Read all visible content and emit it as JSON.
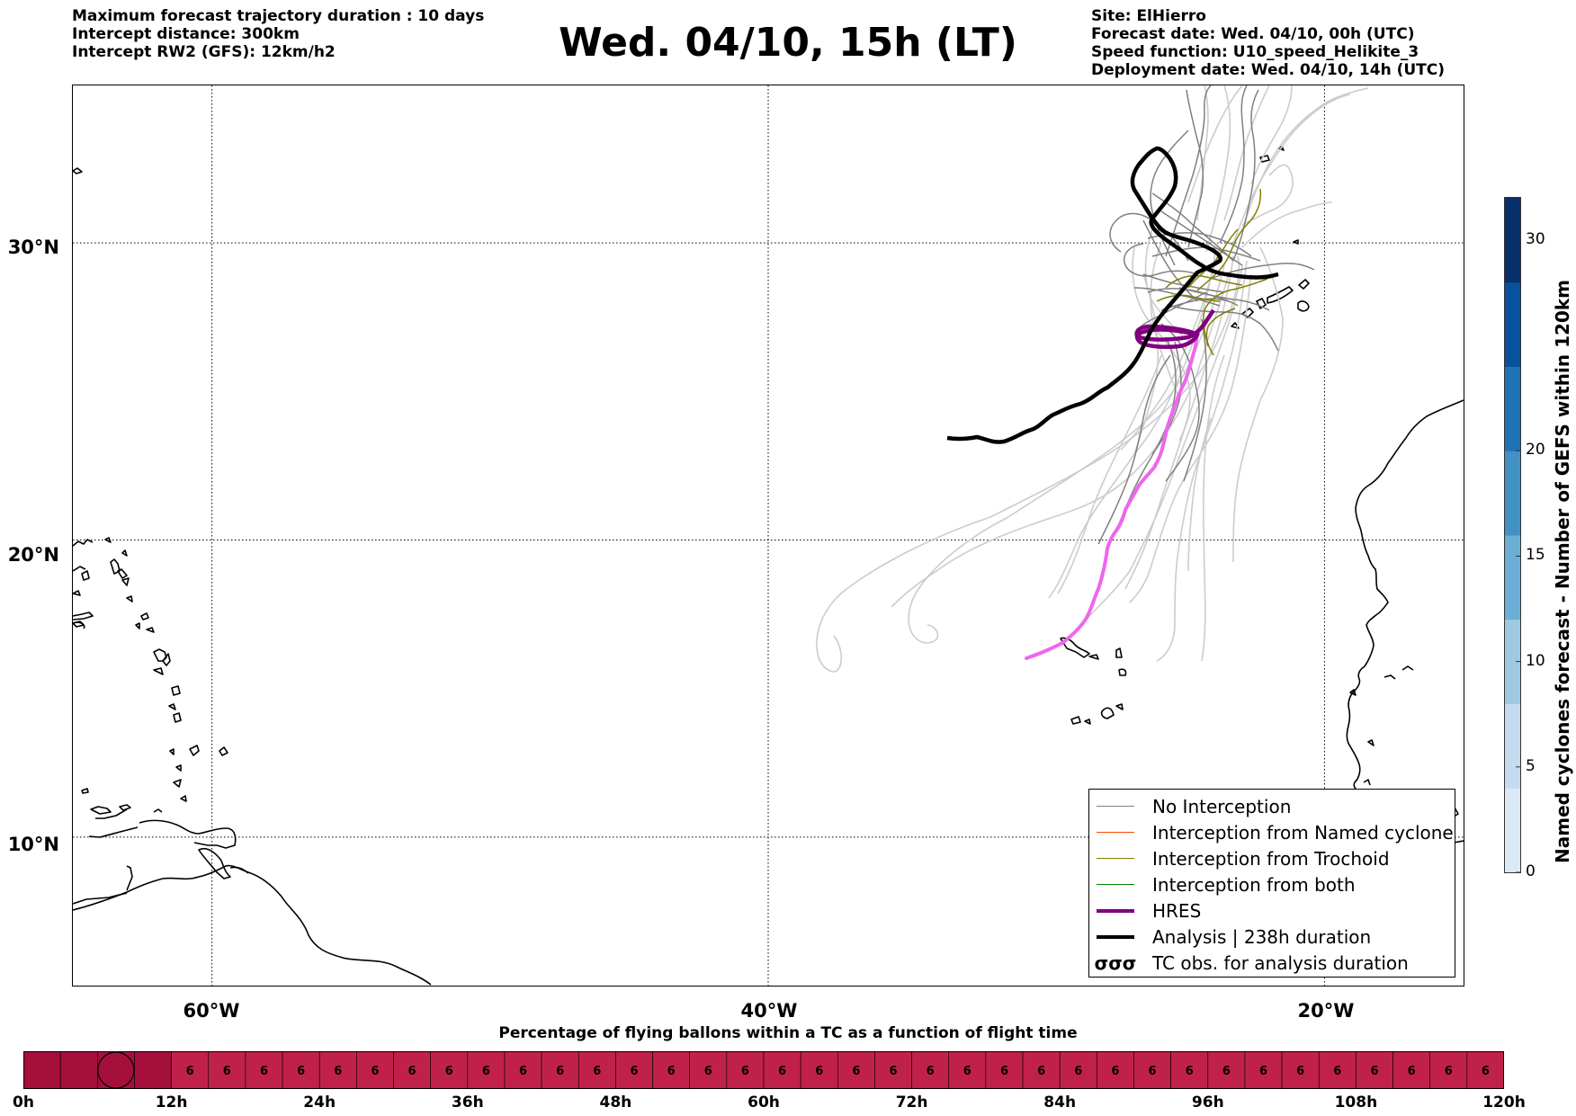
{
  "header": {
    "left_lines": [
      "Maximum forecast trajectory duration : 10 days",
      "Intercept distance: 300km",
      "Intercept RW2 (GFS):  12km/h2"
    ],
    "title": "Wed. 04/10, 15h (LT)",
    "right_lines": [
      "Site: ElHierro",
      "Forecast date: Wed. 04/10, 00h (UTC)",
      "Speed function: U10_speed_Helikite_3",
      "Deployment date: Wed. 04/10, 14h (UTC)"
    ]
  },
  "map": {
    "lat_labels": [
      "30°N",
      "20°N",
      "10°N"
    ],
    "lon_labels": [
      "60°W",
      "40°W",
      "20°W"
    ],
    "lon_range": [
      -65,
      -15
    ],
    "lat_range": [
      5,
      35.3
    ],
    "gridlines": {
      "lats": [
        30,
        20,
        10
      ],
      "lons": [
        -60,
        -40,
        -20
      ]
    },
    "colors": {
      "no_interception": "#808080",
      "named_cyclone": "#ff4500",
      "trochoid": "#808000",
      "both": "#008000",
      "hres": "#800080",
      "analysis": "#000000",
      "hres_later": "#ee66ee",
      "light_members": "#cccccc"
    }
  },
  "legend": [
    {
      "label": "No Interception",
      "color": "#808080",
      "kind": "thin"
    },
    {
      "label": "Interception from Named cyclone",
      "color": "#ff4500",
      "kind": "thin"
    },
    {
      "label": "Interception from Trochoid",
      "color": "#808000",
      "kind": "thin"
    },
    {
      "label": "Interception from both",
      "color": "#008000",
      "kind": "thin"
    },
    {
      "label": "HRES",
      "color": "#800080",
      "kind": "thick"
    },
    {
      "label": "Analysis | 238h duration",
      "color": "#000000",
      "kind": "thick"
    },
    {
      "label": "TC obs. for analysis duration",
      "color": "#000000",
      "kind": "symbol",
      "symbol": "σσσ"
    }
  ],
  "colorbar": {
    "label": "Named cyclones forecast - Number of GEFS within 120km",
    "ticks": [
      "0",
      "5",
      "10",
      "15",
      "20",
      "30"
    ],
    "tick_values": [
      0,
      5,
      10,
      15,
      20,
      30
    ],
    "max": 32,
    "colors": [
      "#dbe9f6",
      "#c6dbef",
      "#9ecae1",
      "#6baed6",
      "#4292c6",
      "#2171b5",
      "#08519c",
      "#08306b"
    ]
  },
  "timebar": {
    "title": "Percentage of flying ballons within a TC as a function of flight time",
    "time_labels": [
      "0h",
      "12h",
      "24h",
      "36h",
      "48h",
      "60h",
      "72h",
      "84h",
      "96h",
      "108h",
      "120h"
    ],
    "cell_value": "6",
    "cells": 40,
    "first_dark_cells": 4,
    "dark_color": "#a50f3c",
    "cell_color": "#c0214a",
    "circle_cell_center": 2.5
  }
}
